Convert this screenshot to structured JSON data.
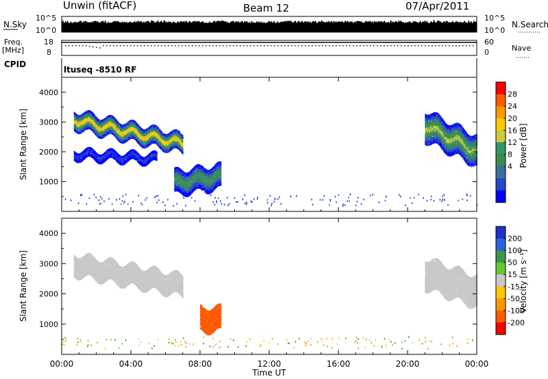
{
  "header": {
    "left_title": "Unwin (fitACF)",
    "center_title": "Beam 12",
    "date": "07/Apr/2011"
  },
  "sky_panel": {
    "left_label": "N.Sky",
    "right_label": "N.Search",
    "left_ticks": [
      "10^5",
      "10^0"
    ],
    "right_ticks": [
      "10^5",
      "10^0"
    ]
  },
  "freq_panel": {
    "left_label_line1": "Freq.",
    "left_label_line2": "[MHz]",
    "right_label": "Nave",
    "left_ticks": [
      "18",
      "8"
    ],
    "right_ticks": [
      "60",
      "0"
    ]
  },
  "cpid_panel": {
    "label": "CPID",
    "text": "ltuseq -8510 RF"
  },
  "colorbars": {
    "power": {
      "label": "Power [dB]",
      "ticks": [
        "28",
        "24",
        "20",
        "16",
        "12",
        "8",
        "4"
      ],
      "colors": [
        "#ff0000",
        "#ff5a00",
        "#ff9600",
        "#ffc800",
        "#cdc83c",
        "#329664",
        "#3c8c50",
        "#3c6ea0",
        "#2846c8",
        "#0000ff"
      ]
    },
    "velocity": {
      "label": "Velocity [m s⁻¹]",
      "ticks": [
        "200",
        "100",
        "50",
        "15",
        "-15",
        "-50",
        "-100",
        "-200"
      ],
      "colors": [
        "#1e32c8",
        "#2864dc",
        "#3c9650",
        "#64c832",
        "#c8c8c8",
        "#ffc800",
        "#ff9600",
        "#ff5a00",
        "#ff0000"
      ]
    }
  },
  "x_axis": {
    "title": "Time UT",
    "ticks": [
      "00:00",
      "04:00",
      "08:00",
      "12:00",
      "16:00",
      "20:00",
      "00:00"
    ]
  },
  "chart_data": [
    {
      "type": "heatmap",
      "quantity": "power",
      "x_range_hours": [
        0,
        24
      ],
      "ylim": [
        0,
        4500
      ],
      "ylabel": "Slant Range [km]",
      "yticks": [
        1000,
        2000,
        3000,
        4000
      ],
      "clim": [
        0,
        32
      ],
      "regions": [
        {
          "t_start": 0.7,
          "t_end": 7.0,
          "range_center_start": 3100,
          "range_center_end": 2300,
          "half_width": 300,
          "peak_db": 22
        },
        {
          "t_start": 0.7,
          "t_end": 5.5,
          "range_center_start": 1950,
          "range_center_end": 1800,
          "half_width": 150,
          "peak_db": 5
        },
        {
          "t_start": 6.5,
          "t_end": 9.2,
          "range_center_start": 1000,
          "range_center_end": 1200,
          "half_width": 400,
          "peak_db": 14
        },
        {
          "t_start": 21.0,
          "t_end": 24.0,
          "range_center_start": 2900,
          "range_center_end": 2050,
          "half_width": 500,
          "peak_db": 18
        }
      ]
    },
    {
      "type": "heatmap",
      "quantity": "velocity",
      "x_range_hours": [
        0,
        24
      ],
      "ylim": [
        0,
        4500
      ],
      "ylabel": "Slant Range [km]",
      "yticks": [
        1000,
        2000,
        3000,
        4000
      ],
      "clim": [
        -250,
        250
      ],
      "regions": [
        {
          "t_start": 0.7,
          "t_end": 7.0,
          "range_center_start": 3000,
          "range_center_end": 2300,
          "half_width": 350,
          "velocity": 0
        },
        {
          "t_start": 8.0,
          "t_end": 9.2,
          "range_center_start": 1200,
          "range_center_end": 1200,
          "half_width": 400,
          "velocity": -120
        },
        {
          "t_start": 21.0,
          "t_end": 24.0,
          "range_center_start": 2700,
          "range_center_end": 2100,
          "half_width": 500,
          "velocity": 0
        }
      ]
    }
  ]
}
